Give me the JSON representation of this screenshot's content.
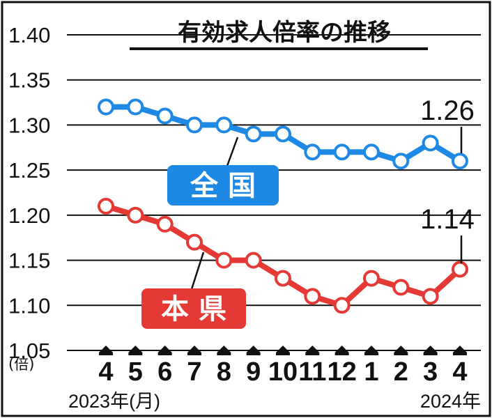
{
  "chart_data": {
    "type": "line",
    "title": "有効求人倍率の推移",
    "ylabel": "(倍)",
    "ylim": [
      1.05,
      1.4
    ],
    "yticks": [
      "1.40",
      "1.35",
      "1.30",
      "1.25",
      "1.20",
      "1.15",
      "1.10",
      "1.05"
    ],
    "categories": [
      "4",
      "5",
      "6",
      "7",
      "8",
      "9",
      "10",
      "11",
      "12",
      "1",
      "2",
      "3",
      "4"
    ],
    "year_start_label": "2023年(月)",
    "year_end_label": "2024年",
    "series": [
      {
        "name": "全 国",
        "color": "#1e88e5",
        "values": [
          1.32,
          1.32,
          1.31,
          1.3,
          1.3,
          1.29,
          1.29,
          1.27,
          1.27,
          1.27,
          1.26,
          1.28,
          1.26
        ],
        "callout": "1.26"
      },
      {
        "name": "本 県",
        "color": "#e53935",
        "values": [
          1.21,
          1.2,
          1.19,
          1.17,
          1.15,
          1.15,
          1.13,
          1.11,
          1.1,
          1.13,
          1.12,
          1.11,
          1.14
        ],
        "callout": "1.14"
      }
    ]
  }
}
